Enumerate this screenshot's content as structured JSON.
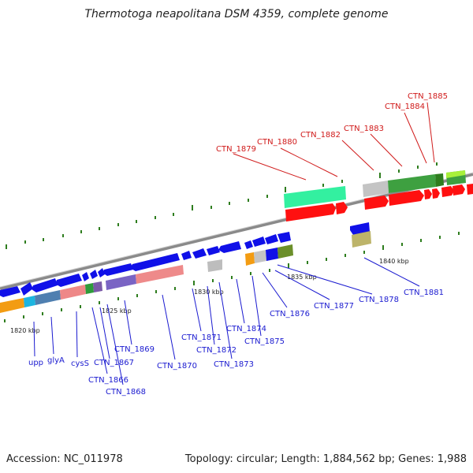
{
  "title": "Thermotoga neapolitana DSM 4359, complete genome",
  "footer": {
    "accession": "Accession: NC_011978",
    "summary": "Topology: circular; Length: 1,884,562 bp; Genes: 1,988"
  },
  "scale_labels": [
    "1820 kbp",
    "1825 kbp",
    "1830 kbp",
    "1835 kbp",
    "1840 kbp"
  ],
  "colors": {
    "backbone": "#8a8a8a",
    "tick": "#2e7d1e",
    "gene_label_blue": "#1a1ad0",
    "gene_label_red": "#d01a1a",
    "forward_cds": "#ff1010",
    "reverse_cds": "#1010e8"
  },
  "gene_labels": {
    "blue": [
      "upp",
      "glyA",
      "cysS",
      "CTN_1866",
      "CTN_1867",
      "CTN_1868",
      "CTN_1869",
      "CTN_1870",
      "CTN_1871",
      "CTN_1872",
      "CTN_1873",
      "CTN_1874",
      "CTN_1875",
      "CTN_1876",
      "CTN_1877",
      "CTN_1878",
      "CTN_1881"
    ],
    "red": [
      "CTN_1879",
      "CTN_1880",
      "CTN_1882",
      "CTN_1883",
      "CTN_1884",
      "CTN_1885"
    ]
  }
}
